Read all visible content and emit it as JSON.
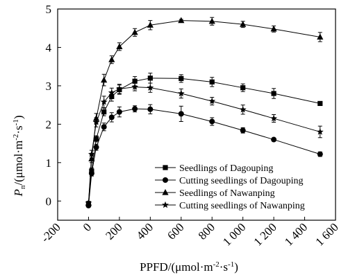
{
  "chart_data": {
    "type": "line",
    "title": "",
    "xlabel": "PPFD/(μmol·m⁻²·s⁻¹)",
    "ylabel": "Pn/(μmol·m⁻²·s⁻¹)",
    "ylabel_main": "P",
    "ylabel_sub": "n",
    "ylabel_rest": "/(μmol·m",
    "ylabel_sup1": "-2",
    "ylabel_mid": "·s",
    "ylabel_sup2": "-1",
    "ylabel_end": ")",
    "xlabel_main": "PPFD/(μmol·m",
    "xlabel_sup1": "-2",
    "xlabel_mid": "·s",
    "xlabel_sup2": "-1",
    "xlabel_end": ")",
    "xlim": [
      -200,
      1600
    ],
    "ylim": [
      -0.5,
      5
    ],
    "x_ticks": [
      -200,
      0,
      200,
      400,
      600,
      800,
      1000,
      1200,
      1400,
      1600
    ],
    "x_tick_labels": [
      "-200",
      "0",
      "200",
      "400",
      "600",
      "800",
      "1 000",
      "1 200",
      "1 400",
      "1 600"
    ],
    "y_ticks": [
      0,
      1,
      2,
      3,
      4,
      5
    ],
    "y_tick_labels": [
      "0",
      "1",
      "2",
      "3",
      "4",
      "5"
    ],
    "grid": false,
    "legend_position": "lower-right",
    "series": [
      {
        "name": "Seedlings of Dagouping",
        "marker": "square",
        "x": [
          0,
          20,
          50,
          100,
          150,
          200,
          300,
          400,
          600,
          800,
          1000,
          1200,
          1500
        ],
        "y": [
          -0.07,
          0.78,
          1.62,
          2.32,
          2.72,
          2.9,
          3.12,
          3.2,
          3.19,
          3.1,
          2.95,
          2.8,
          2.54
        ],
        "err": [
          0.04,
          0.08,
          0.08,
          0.1,
          0.12,
          0.12,
          0.12,
          0.13,
          0.1,
          0.12,
          0.1,
          0.13,
          0.04
        ]
      },
      {
        "name": "Cutting seedlings of Dagouping",
        "marker": "circle",
        "x": [
          0,
          20,
          50,
          100,
          150,
          200,
          300,
          400,
          600,
          800,
          1000,
          1200,
          1500
        ],
        "y": [
          -0.12,
          0.72,
          1.4,
          1.93,
          2.18,
          2.32,
          2.4,
          2.39,
          2.27,
          2.07,
          1.84,
          1.6,
          1.22
        ],
        "err": [
          0.03,
          0.07,
          0.08,
          0.1,
          0.12,
          0.13,
          0.08,
          0.12,
          0.2,
          0.1,
          0.07,
          0.04,
          0.06
        ]
      },
      {
        "name": "Seedlings of Nawanping",
        "marker": "triangle",
        "x": [
          0,
          20,
          50,
          100,
          150,
          200,
          300,
          400,
          600,
          800,
          1000,
          1200,
          1500
        ],
        "y": [
          -0.05,
          1.1,
          2.15,
          3.15,
          3.68,
          4.02,
          4.39,
          4.58,
          4.7,
          4.68,
          4.6,
          4.48,
          4.27
        ],
        "err": [
          0.04,
          0.1,
          0.13,
          0.15,
          0.1,
          0.1,
          0.1,
          0.12,
          0.03,
          0.1,
          0.08,
          0.08,
          0.12
        ]
      },
      {
        "name": "Cutting seedlings of Nawanping",
        "marker": "star",
        "x": [
          0,
          20,
          50,
          100,
          150,
          200,
          300,
          400,
          600,
          800,
          1000,
          1200,
          1500
        ],
        "y": [
          -0.05,
          1.22,
          2.05,
          2.58,
          2.82,
          2.92,
          2.97,
          2.95,
          2.8,
          2.6,
          2.38,
          2.15,
          1.8
        ],
        "err": [
          0.04,
          0.1,
          0.12,
          0.15,
          0.12,
          0.12,
          0.1,
          0.12,
          0.12,
          0.1,
          0.12,
          0.1,
          0.15
        ]
      }
    ]
  }
}
